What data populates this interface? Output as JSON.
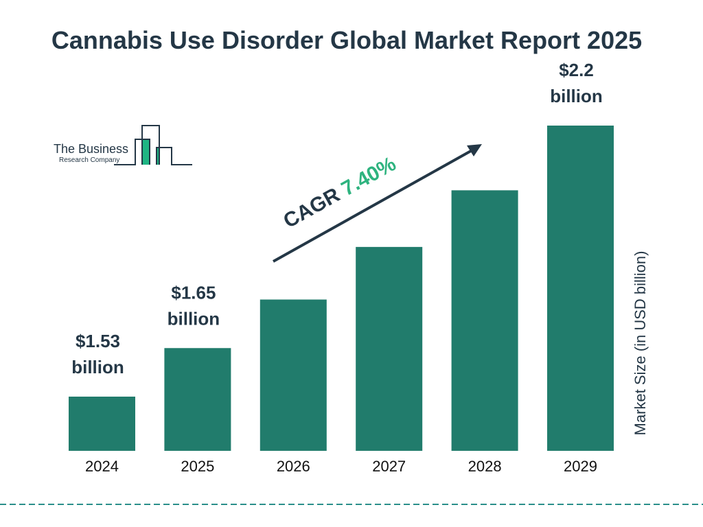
{
  "chart_data": {
    "type": "bar",
    "title": "Cannabis Use Disorder Global Market Report 2025",
    "categories": [
      "2024",
      "2025",
      "2026",
      "2027",
      "2028",
      "2029"
    ],
    "values": [
      1.53,
      1.65,
      1.77,
      1.9,
      2.04,
      2.2
    ],
    "data_labels": [
      {
        "category": "2024",
        "line1": "$1.53",
        "line2": "billion"
      },
      {
        "category": "2025",
        "line1": "$1.65",
        "line2": "billion"
      },
      {
        "category": "2029",
        "line1": "$2.2",
        "line2": "billion"
      }
    ],
    "ylabel": "Market Size (in USD billion)",
    "xlabel": "",
    "grid": false,
    "annotation": {
      "prefix": "CAGR ",
      "value": "7.40%"
    },
    "colors": {
      "bar": "#217c6c",
      "text": "#243746",
      "accent": "#2eb37f",
      "divider": "#2a8f8a"
    }
  },
  "logo": {
    "line1": "The Business",
    "line2": "Research Company"
  }
}
